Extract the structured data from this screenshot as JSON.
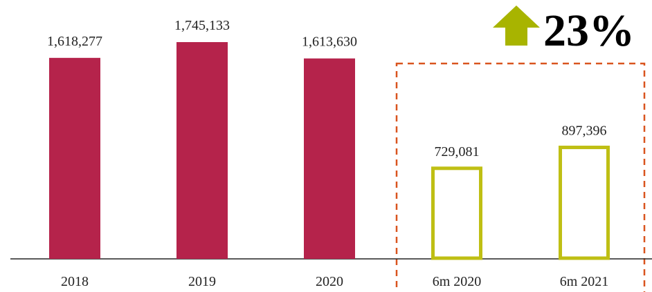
{
  "chart_data": {
    "type": "bar",
    "categories": [
      "2018",
      "2019",
      "2020",
      "6m 2020",
      "6m 2021"
    ],
    "values": [
      1618277,
      1745133,
      1613630,
      729081,
      897396
    ],
    "value_labels": [
      "1,618,277",
      "1,745,133",
      "1,613,630",
      "729,081",
      "897,396"
    ],
    "colors": [
      "#b5234b",
      "#b5234b",
      "#b5234b",
      "#bfbf14",
      "#bfbf14"
    ],
    "filled": [
      true,
      true,
      true,
      false,
      false
    ],
    "annotation": "23%"
  }
}
